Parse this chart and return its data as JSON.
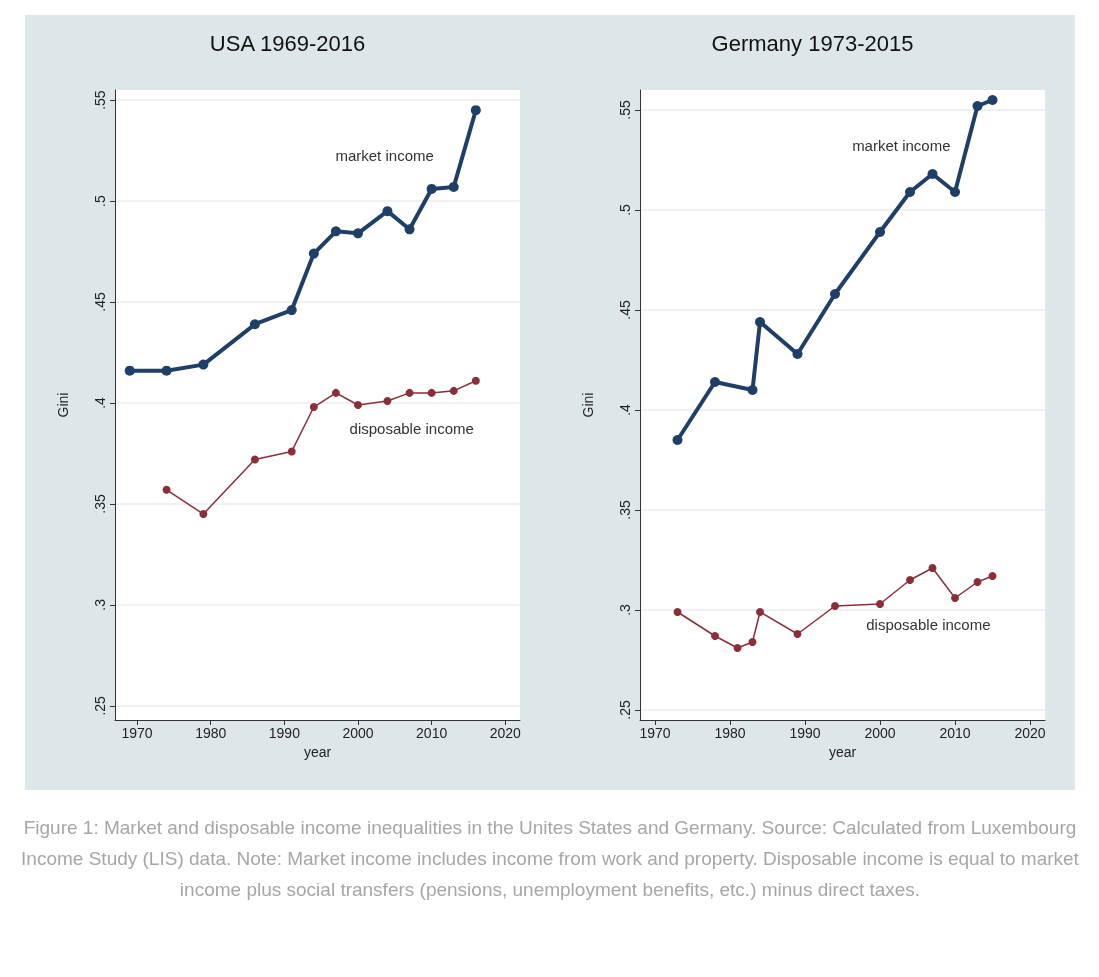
{
  "chart_data": [
    {
      "type": "line",
      "title": "USA 1969-2016",
      "xlabel": "year",
      "ylabel": "Gini",
      "xlim": [
        1967,
        2022
      ],
      "xticks": [
        1970,
        1980,
        1990,
        2000,
        2010,
        2020
      ],
      "ylim": [
        0.243,
        0.555
      ],
      "yticks": [
        {
          "value": 0.25,
          "label": ".25"
        },
        {
          "value": 0.3,
          "label": ".3"
        },
        {
          "value": 0.35,
          "label": ".35"
        },
        {
          "value": 0.4,
          "label": ".4"
        },
        {
          "value": 0.45,
          "label": ".45"
        },
        {
          "value": 0.5,
          "label": ".5"
        },
        {
          "value": 0.55,
          "label": ".55"
        }
      ],
      "grid": "y",
      "marker": "circle",
      "legend": false,
      "series": [
        {
          "name": "market income",
          "color": "#1f3f66",
          "x": [
            1969,
            1974,
            1979,
            1986,
            1991,
            1994,
            1997,
            2000,
            2004,
            2007,
            2010,
            2013,
            2016
          ],
          "values": [
            0.416,
            0.416,
            0.419,
            0.439,
            0.446,
            0.474,
            0.485,
            0.484,
            0.495,
            0.486,
            0.506,
            0.507,
            0.545
          ]
        },
        {
          "name": "disposable income",
          "color": "#8b2e3a",
          "x": [
            1974,
            1979,
            1986,
            1991,
            1994,
            1997,
            2000,
            2004,
            2007,
            2010,
            2013,
            2016
          ],
          "values": [
            0.357,
            0.345,
            0.372,
            0.376,
            0.398,
            0.405,
            0.399,
            0.401,
            0.405,
            0.405,
            0.406,
            0.411
          ]
        }
      ]
    },
    {
      "type": "line",
      "title": "Germany 1973-2015",
      "xlabel": "year",
      "ylabel": "Gini",
      "xlim": [
        1968,
        2022
      ],
      "xticks": [
        1970,
        1980,
        1990,
        2000,
        2010,
        2020
      ],
      "ylim": [
        0.245,
        0.56
      ],
      "yticks": [
        {
          "value": 0.25,
          "label": ".25"
        },
        {
          "value": 0.3,
          "label": ".3"
        },
        {
          "value": 0.35,
          "label": ".35"
        },
        {
          "value": 0.4,
          "label": ".4"
        },
        {
          "value": 0.45,
          "label": ".45"
        },
        {
          "value": 0.5,
          "label": ".5"
        },
        {
          "value": 0.55,
          "label": ".55"
        }
      ],
      "grid": "y",
      "marker": "circle",
      "legend": false,
      "annotations": [
        "Figure 1: Market and disposable income inequalities in the Unites States and Germany. Source: Calculated from Luxembourg Income Study (LIS) data. Note: Market income includes income from work and property. Disposable income is equal to market income plus social transfers (pensions, unemployment benefits, etc.) minus direct taxes."
      ],
      "series": [
        {
          "name": "market income",
          "color": "#1f3f66",
          "x": [
            1973,
            1978,
            1983,
            1984,
            1989,
            1994,
            2000,
            2004,
            2007,
            2010,
            2013,
            2015
          ],
          "values": [
            0.385,
            0.414,
            0.41,
            0.444,
            0.428,
            0.458,
            0.489,
            0.509,
            0.518,
            0.509,
            0.552,
            0.555
          ]
        },
        {
          "name": "disposable income",
          "color": "#8b2e3a",
          "x": [
            1973,
            1978,
            1981,
            1983,
            1984,
            1989,
            1994,
            2000,
            2004,
            2007,
            2010,
            2013,
            2015
          ],
          "values": [
            0.299,
            0.287,
            0.281,
            0.284,
            0.299,
            0.288,
            0.302,
            0.303,
            0.315,
            0.321,
            0.306,
            0.314,
            0.317
          ]
        }
      ]
    }
  ]
}
